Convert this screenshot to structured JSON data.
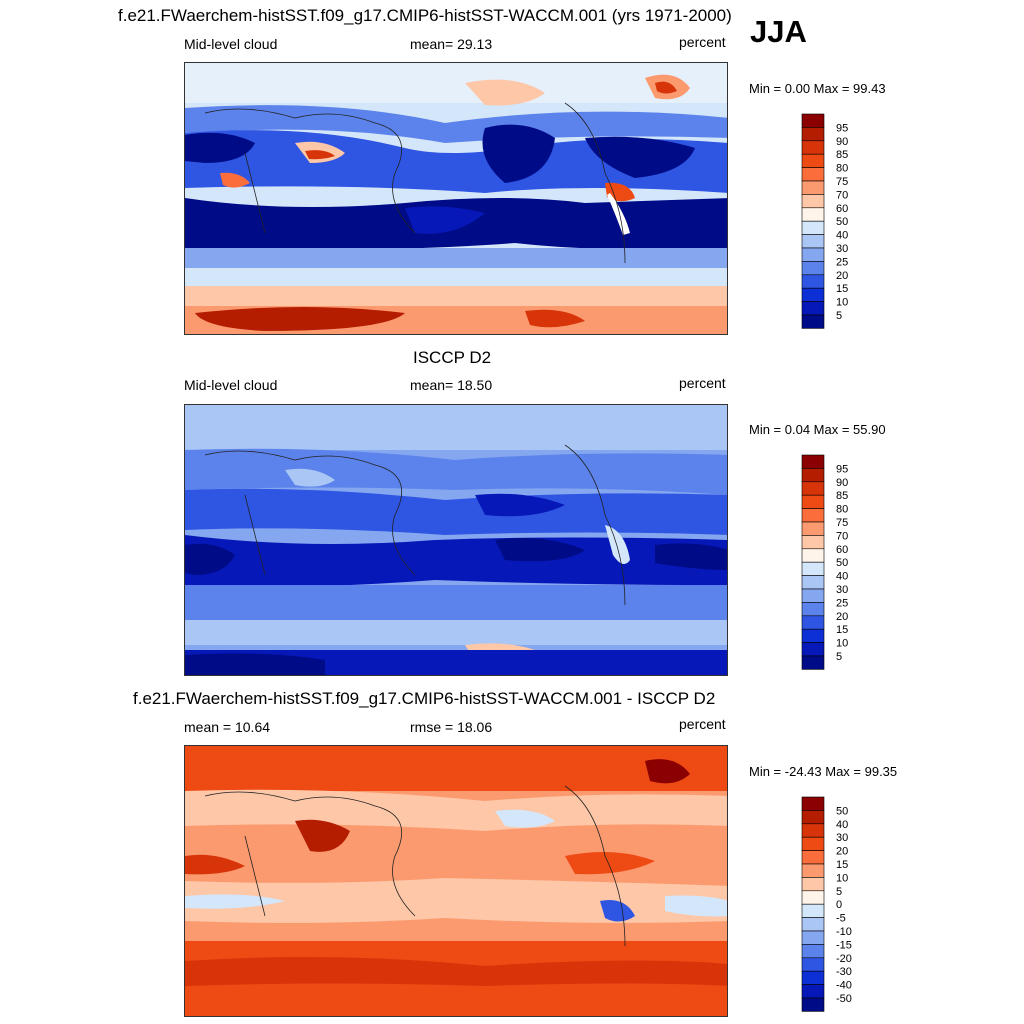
{
  "jja_label": "JJA",
  "panels": [
    {
      "title": "f.e21.FWaerchem-histSST.f09_g17.CMIP6-histSST-WACCM.001 (yrs 1971-2000)",
      "left_label": "Mid-level cloud",
      "center_label": "mean=  29.13",
      "right_label": "percent",
      "minmax": "Min =   0.00 Max =  99.43",
      "mean": 29.13,
      "min": 0.0,
      "max": 99.43
    },
    {
      "title": "ISCCP D2",
      "left_label": "Mid-level cloud",
      "center_label": "mean=  18.50",
      "right_label": "percent",
      "minmax": "Min =   0.04 Max =  55.90",
      "mean": 18.5,
      "min": 0.04,
      "max": 55.9
    },
    {
      "title": "f.e21.FWaerchem-histSST.f09_g17.CMIP6-histSST-WACCM.001 - ISCCP D2",
      "left_label": "mean =  10.64",
      "center_label": "rmse =  18.06",
      "right_label": "percent",
      "minmax": "Min = -24.43 Max =  99.35",
      "mean": 10.64,
      "rmse": 18.06,
      "min": -24.43,
      "max": 99.35
    }
  ],
  "legend_abs": {
    "labels": [
      "95",
      "90",
      "85",
      "80",
      "75",
      "70",
      "60",
      "50",
      "40",
      "30",
      "25",
      "20",
      "15",
      "10",
      "5"
    ],
    "colors": [
      "#8b0000",
      "#b41d00",
      "#d8340a",
      "#ee4a14",
      "#fb6e3c",
      "#fc9a6f",
      "#fdc7a8",
      "#fff4ea",
      "#d4e6fa",
      "#aac6f5",
      "#85a7f0",
      "#5c83eb",
      "#2f55e3",
      "#0d2fd6",
      "#0718b8",
      "#000b88"
    ]
  },
  "legend_diff": {
    "labels": [
      "50",
      "40",
      "30",
      "20",
      "15",
      "10",
      "5",
      "0",
      "-5",
      "-10",
      "-15",
      "-20",
      "-30",
      "-40",
      "-50"
    ],
    "colors": [
      "#8b0000",
      "#b41d00",
      "#d8340a",
      "#ee4a14",
      "#fb6e3c",
      "#fc9a6f",
      "#fdc7a8",
      "#fff4ea",
      "#d4e6fa",
      "#aac6f5",
      "#85a7f0",
      "#5c83eb",
      "#2f55e3",
      "#0d2fd6",
      "#0718b8",
      "#000b88"
    ]
  },
  "palette": {
    "deep_blue": "#000b88",
    "mid_blue": "#2f55e3",
    "light_blue": "#aac6f5",
    "pale": "#fff4ea",
    "light_red": "#fdc7a8",
    "mid_red": "#ee4a14",
    "dark_red": "#8b0000"
  }
}
